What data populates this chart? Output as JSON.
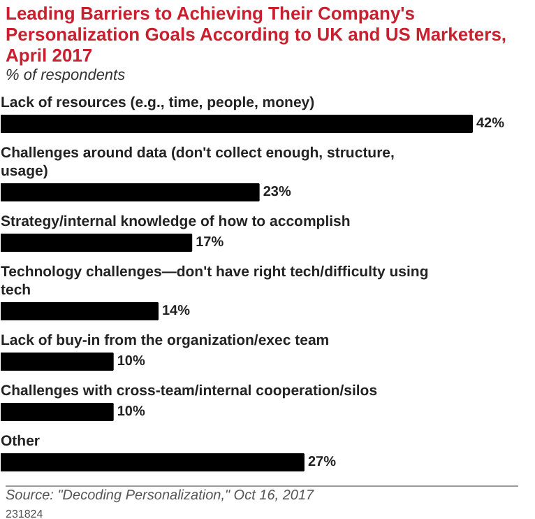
{
  "chart_data": {
    "type": "bar",
    "orientation": "horizontal",
    "title": "Leading Barriers to Achieving Their Company's Personalization Goals According to UK and US Marketers, April 2017",
    "subtitle": "% of respondents",
    "categories": [
      "Lack of resources (e.g., time, people, money)",
      "Challenges around data (don't collect enough, structure, usage)",
      "Strategy/internal knowledge of how to accomplish",
      "Technology challenges—don't have right tech/difficulty using tech",
      "Lack of buy-in from the organization/exec team",
      "Challenges with cross-team/internal cooperation/silos",
      "Other"
    ],
    "values": [
      42,
      23,
      17,
      14,
      10,
      10,
      27
    ],
    "value_labels": [
      "42%",
      "23%",
      "17%",
      "14%",
      "10%",
      "10%",
      "27%"
    ],
    "color": "#000000",
    "annotations": [
      "Source: \"Decoding Personalization,\" Oct 16, 2017",
      "231824"
    ]
  }
}
